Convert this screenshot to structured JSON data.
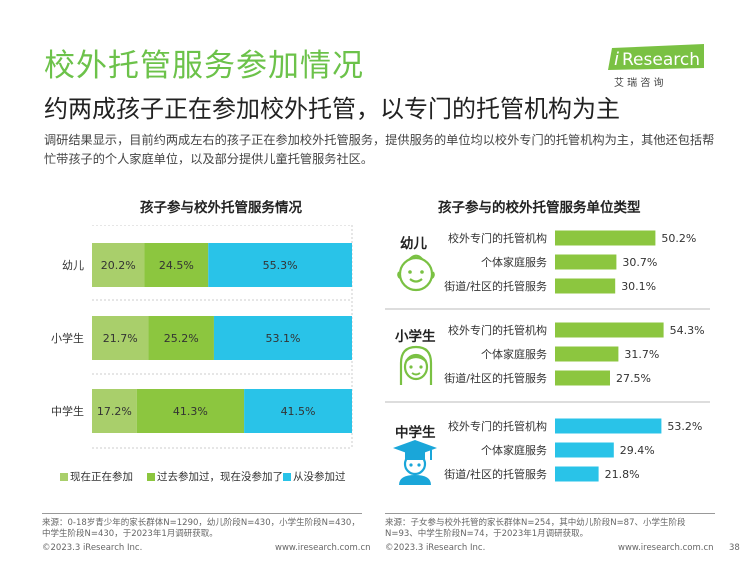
{
  "header": {
    "title": "校外托管服务参加情况",
    "subtitle": "约两成孩子正在参加校外托管，以专门的托管机构为主",
    "intro": "调研结果显示，目前约两成左右的孩子正在参加校外托管服务，提供服务的单位均以校外专门的托管机构为主，其他还包括帮忙带孩子的个人家庭单位，以及部分提供儿童托管服务社区。"
  },
  "logo": {
    "brand_i": "i",
    "brand_rest": "Research",
    "cn": "艾 瑞 咨 询"
  },
  "colors": {
    "accent_green": "#6cc24a",
    "dark_green": "#8cc63f",
    "light_green": "#a9cf6b",
    "cyan": "#29c3e8",
    "grid": "#cccccc"
  },
  "chart_left": {
    "title": "孩子参与校外托管服务情况"
  },
  "chart_right": {
    "title": "孩子参与的校外托管服务单位类型"
  },
  "chart_data": [
    {
      "type": "bar",
      "stacked": true,
      "orientation": "horizontal",
      "title": "孩子参与校外托管服务情况",
      "categories": [
        "幼儿",
        "小学生",
        "中学生"
      ],
      "series": [
        {
          "name": "现在正在参加",
          "values": [
            20.2,
            21.7,
            17.2
          ],
          "labels": [
            "20.2%",
            "21.7%",
            "17.2%"
          ],
          "color": "#a9cf6b"
        },
        {
          "name": "过去参加过，现在没参加了",
          "values": [
            24.5,
            25.2,
            41.3
          ],
          "labels": [
            "24.5%",
            "25.2%",
            "41.3%"
          ],
          "color": "#8cc63f"
        },
        {
          "name": "从没参加过",
          "values": [
            55.3,
            53.1,
            41.5
          ],
          "labels": [
            "55.3%",
            "53.1%",
            "41.5%"
          ],
          "color": "#29c3e8"
        }
      ],
      "xlim": [
        0,
        100
      ],
      "legend": "bottom"
    },
    {
      "type": "bar",
      "orientation": "horizontal",
      "title": "孩子参与的校外托管服务单位类型",
      "groups": [
        {
          "name": "幼儿",
          "color": "#8cc63f",
          "categories": [
            "校外专门的托管机构",
            "个体家庭服务",
            "街道/社区的托管服务"
          ],
          "values": [
            50.2,
            30.7,
            30.1
          ],
          "labels": [
            "50.2%",
            "30.7%",
            "30.1%"
          ]
        },
        {
          "name": "小学生",
          "color": "#8cc63f",
          "categories": [
            "校外专门的托管机构",
            "个体家庭服务",
            "街道/社区的托管服务"
          ],
          "values": [
            54.3,
            31.7,
            27.5
          ],
          "labels": [
            "54.3%",
            "31.7%",
            "27.5%"
          ]
        },
        {
          "name": "中学生",
          "color": "#29c3e8",
          "categories": [
            "校外专门的托管机构",
            "个体家庭服务",
            "街道/社区的托管服务"
          ],
          "values": [
            53.2,
            29.4,
            21.8
          ],
          "labels": [
            "53.2%",
            "29.4%",
            "21.8%"
          ]
        }
      ],
      "xlim": [
        0,
        100
      ]
    }
  ],
  "footer": {
    "source_left": "来源：0-18岁青少年的家长群体N=1290，幼儿阶段N=430，小学生阶段N=430，中学生阶段N=430，于2023年1月调研获取。",
    "source_right": "来源：子女参与校外托管的家长群体N=254，其中幼儿阶段N=87、小学生阶段N=93、中学生阶段N=74，于2023年1月调研获取。",
    "copyright_left": "©2023.3 iResearch Inc.",
    "url_left": "www.iresearch.com.cn",
    "copyright_right": "©2023.3 iResearch Inc.",
    "url_right": "www.iresearch.com.cn",
    "page": "38"
  }
}
